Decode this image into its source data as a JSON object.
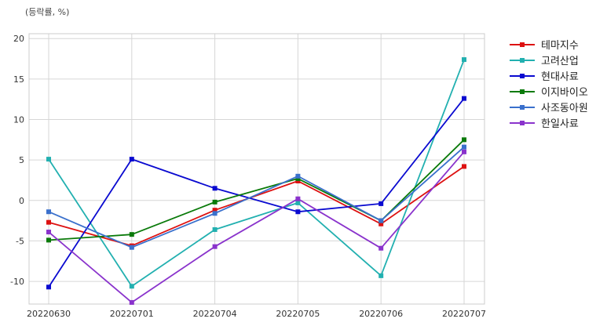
{
  "chart_data": {
    "type": "line",
    "unit_label": "(등락률, %)",
    "categories": [
      "20220630",
      "20220701",
      "20220704",
      "20220705",
      "20220706",
      "20220707"
    ],
    "ylim": [
      -12.8,
      20.6
    ],
    "yticks": [
      -10,
      -5,
      0,
      5,
      10,
      15,
      20
    ],
    "ytick_labels": [
      "-10",
      "-5",
      "0",
      "5",
      "10",
      "15",
      "20"
    ],
    "grid": true,
    "legend_position": "top-right-outside",
    "series": [
      {
        "name": "테마지수",
        "color": "#dd1111",
        "values": [
          -2.7,
          -5.6,
          -1.2,
          2.4,
          -2.9,
          4.2
        ]
      },
      {
        "name": "고려산업",
        "color": "#22b0b0",
        "values": [
          5.1,
          -10.6,
          -3.6,
          -0.3,
          -9.3,
          17.4
        ]
      },
      {
        "name": "현대사료",
        "color": "#0a0ad0",
        "values": [
          -10.7,
          5.1,
          1.5,
          -1.4,
          -0.4,
          12.6
        ]
      },
      {
        "name": "이지바이오",
        "color": "#0a7a0a",
        "values": [
          -4.9,
          -4.2,
          -0.2,
          2.7,
          -2.5,
          7.5
        ]
      },
      {
        "name": "사조동아원",
        "color": "#3a70cc",
        "values": [
          -1.4,
          -5.8,
          -1.6,
          3.0,
          -2.5,
          6.6
        ]
      },
      {
        "name": "한일사료",
        "color": "#8a33cc",
        "values": [
          -3.9,
          -12.6,
          -5.7,
          0.2,
          -5.9,
          6.0
        ]
      }
    ]
  }
}
